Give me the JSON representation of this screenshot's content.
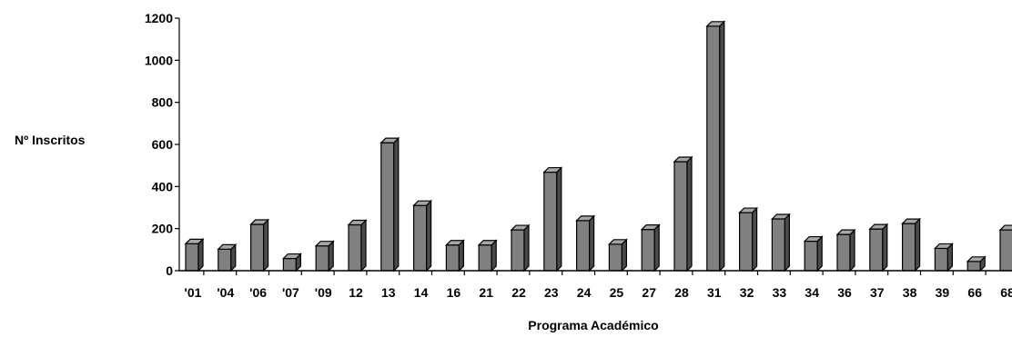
{
  "chart_data": {
    "type": "bar",
    "title": "",
    "xlabel": "Programa Académico",
    "ylabel": "Nº Inscritos",
    "ylim": [
      0,
      1200
    ],
    "yticks": [
      0,
      200,
      400,
      600,
      800,
      1000,
      1200
    ],
    "grid": false,
    "categories": [
      "'01",
      "'04",
      "'06",
      "'07",
      "'09",
      "12",
      "13",
      "14",
      "16",
      "21",
      "22",
      "23",
      "24",
      "25",
      "27",
      "28",
      "31",
      "32",
      "33",
      "34",
      "36",
      "37",
      "38",
      "39",
      "66",
      "68"
    ],
    "values": [
      128,
      102,
      220,
      58,
      118,
      218,
      608,
      310,
      122,
      122,
      194,
      468,
      238,
      126,
      196,
      518,
      1162,
      276,
      246,
      140,
      172,
      198,
      224,
      106,
      44,
      194
    ],
    "bar_color": "#808080"
  }
}
